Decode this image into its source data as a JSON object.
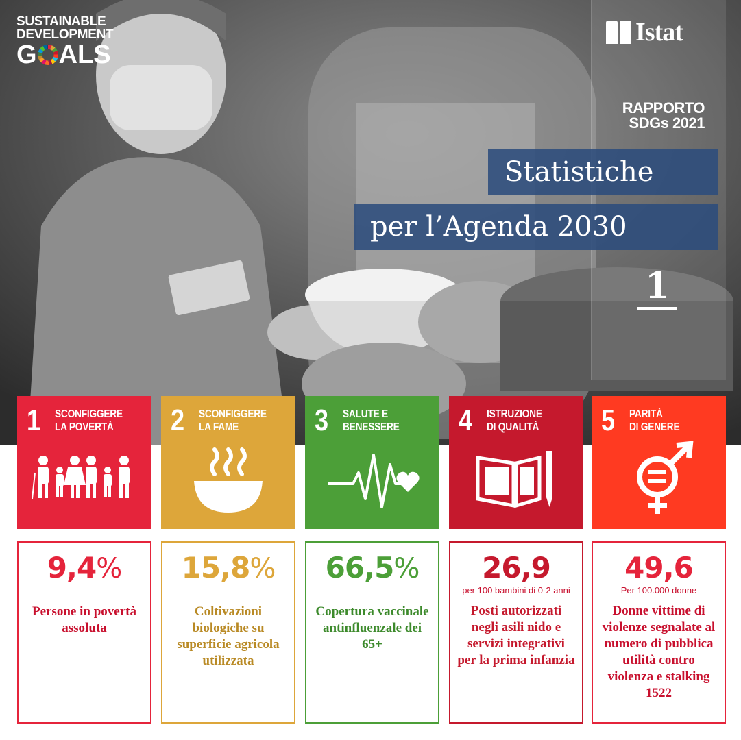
{
  "header": {
    "sdg_logo": {
      "line1": "SUSTAINABLE",
      "line2": "DEVELOPMENT",
      "line3_pre": "G",
      "line3_post": "ALS"
    },
    "istat_logo": "Istat",
    "report_line1": "RAPPORTO",
    "report_line2": "SDGs 2021",
    "title_line1": "Statistiche",
    "title_line2": "per l’Agenda 2030",
    "page_number": "1"
  },
  "goals": [
    {
      "number": "1",
      "title_line1": "SCONFIGGERE",
      "title_line2": "LA POVERTÀ",
      "icon": "family-icon",
      "color": "#e5243b"
    },
    {
      "number": "2",
      "title_line1": "SCONFIGGERE",
      "title_line2": "LA FAME",
      "icon": "steaming-bowl-icon",
      "color": "#dda63a"
    },
    {
      "number": "3",
      "title_line1": "SALUTE E",
      "title_line2": "BENESSERE",
      "icon": "heartbeat-icon",
      "color": "#4c9f38"
    },
    {
      "number": "4",
      "title_line1": "ISTRUZIONE",
      "title_line2": "DI QUALITÀ",
      "icon": "book-pencil-icon",
      "color": "#c5192d"
    },
    {
      "number": "5",
      "title_line1": "PARITÀ",
      "title_line2": "DI GENERE",
      "icon": "gender-equality-icon",
      "color": "#ff3a21"
    }
  ],
  "stats": [
    {
      "value": "9,4",
      "suffix": "%",
      "unit": "",
      "description": "Persone in povertà assoluta",
      "border_color": "#e5243b",
      "value_color": "#e5243b",
      "text_color": "#c8102e"
    },
    {
      "value": "15,8",
      "suffix": "%",
      "unit": "",
      "description": "Coltivazioni biologiche su superficie agricola utilizzata",
      "border_color": "#dda63a",
      "value_color": "#dda63a",
      "text_color": "#b98a25"
    },
    {
      "value": "66,5",
      "suffix": "%",
      "unit": "",
      "description": "Copertura vaccinale antinfluenzale dei 65+",
      "border_color": "#4c9f38",
      "value_color": "#4c9f38",
      "text_color": "#3d8a2c"
    },
    {
      "value": "26,9",
      "suffix": "",
      "unit": "per 100 bambini di 0-2 anni",
      "description": "Posti autorizzati negli asili nido e servizi integrativi per la prima infanzia",
      "border_color": "#c5192d",
      "value_color": "#c5192d",
      "text_color": "#c5192d"
    },
    {
      "value": "49,6",
      "suffix": "",
      "unit": "Per 100.000 donne",
      "description": "Donne vittime di violenze segnalate al numero di pubblica utilità contro violenza e stalking 1522",
      "border_color": "#e5243b",
      "value_color": "#e5243b",
      "text_color": "#c8102e"
    }
  ]
}
